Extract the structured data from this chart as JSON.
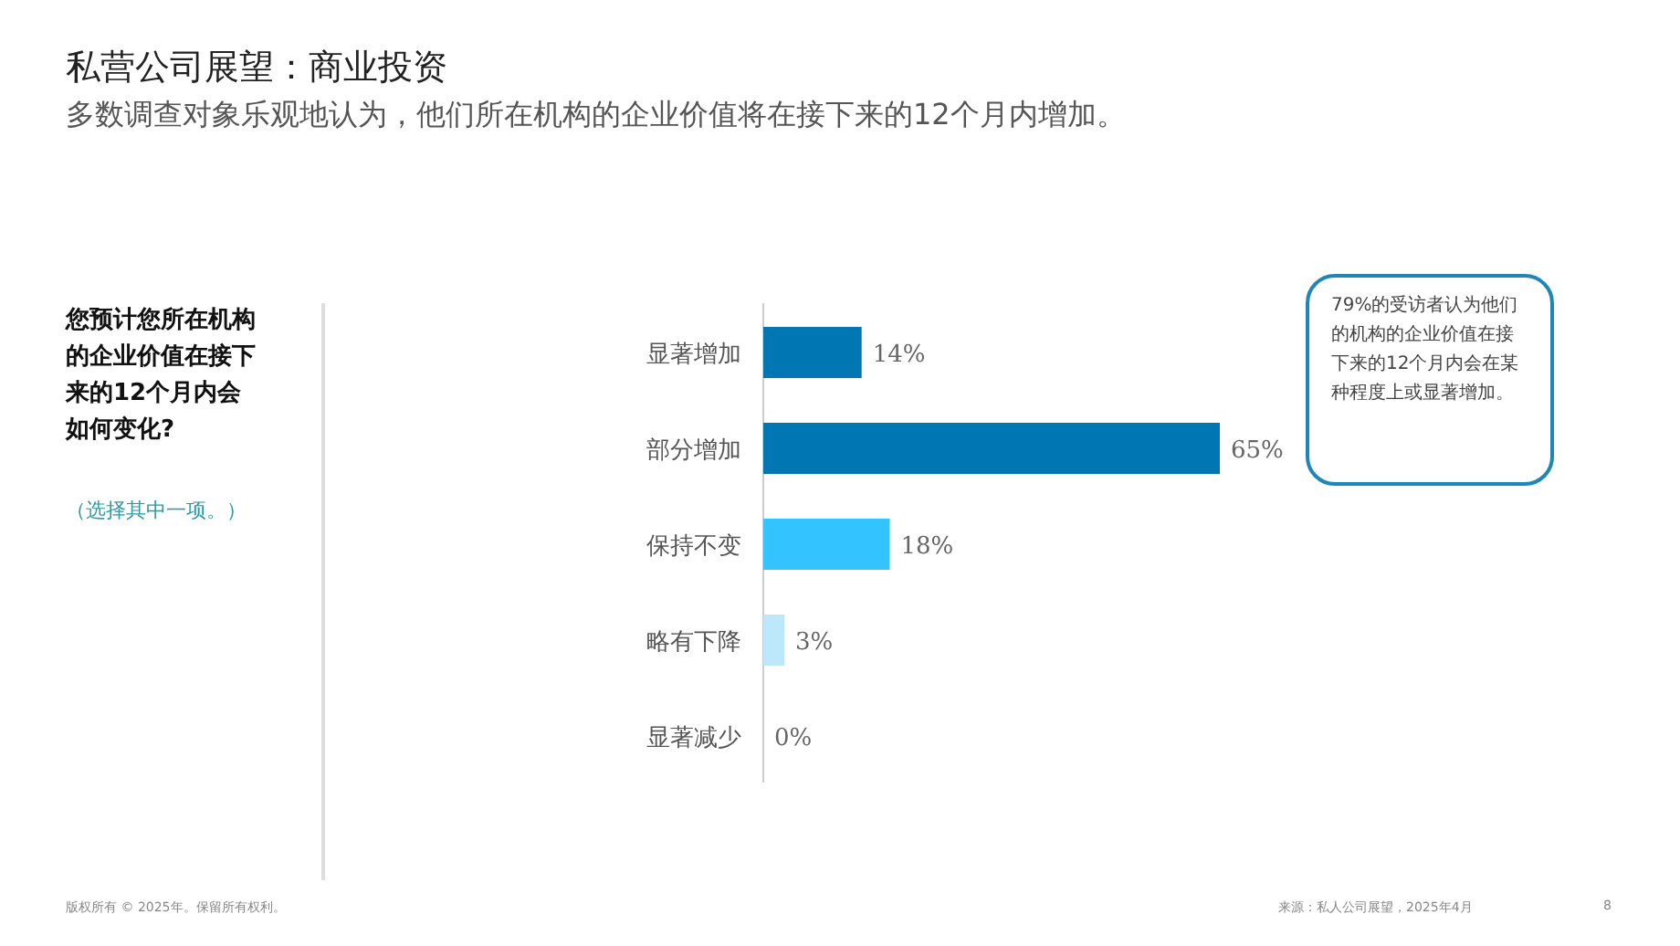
{
  "chart_data": {
    "type": "bar",
    "orientation": "horizontal",
    "title": "私营公司展望：商业投资",
    "subtitle": "多数调查对象乐观地认为，他们所在机构的企业价值将在接下来的12个月内增加。",
    "categories": [
      "显著增加",
      "部分增加",
      "保持不变",
      "略有下降",
      "显著减少"
    ],
    "values": [
      14,
      65,
      18,
      3,
      0
    ],
    "value_labels": [
      "14%",
      "65%",
      "18%",
      "3%",
      "0%"
    ],
    "colors": [
      "#0077b3",
      "#0077b3",
      "#33c3ff",
      "#bde8fb",
      "#bde8fb"
    ],
    "annotations": [
      "您预计您所在机构的企业价值在接下来的12个月内会如何变化?",
      "（选择其中一项。）",
      "79%的受访者认为他们的机构的企业价值在接下来的12个月内会在某种程度上或显著增加。",
      "版权所有 © 2025年。保留所有权利。",
      "来源：私人公司展望，2025年4月",
      "8"
    ]
  }
}
